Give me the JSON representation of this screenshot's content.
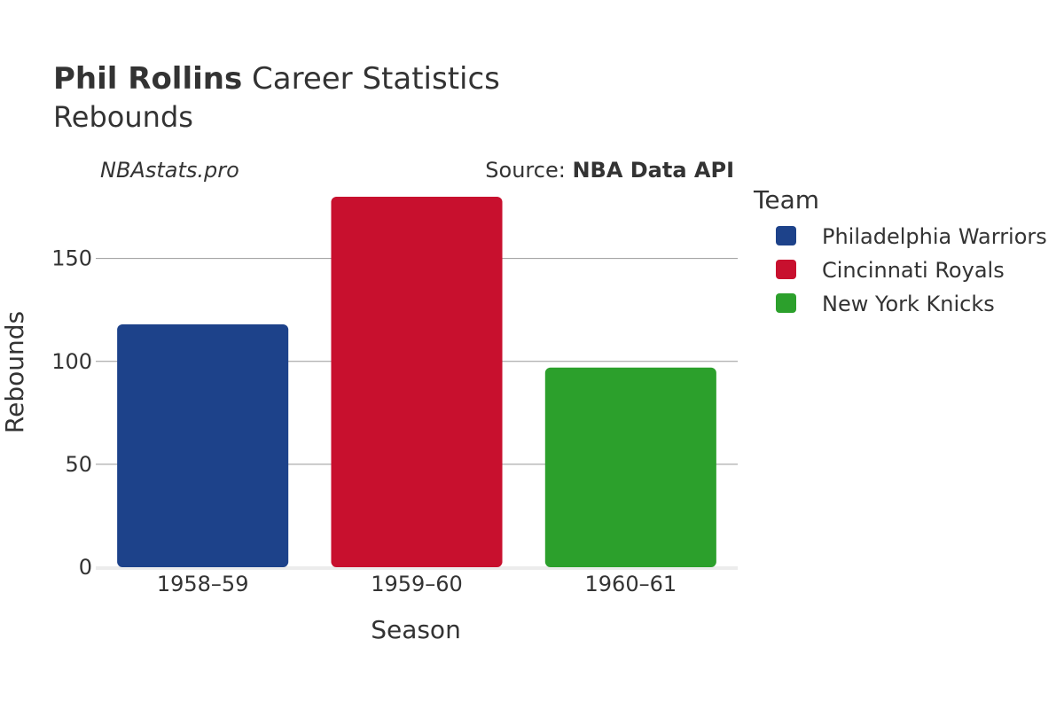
{
  "header": {
    "player_name": "Phil Rollins",
    "title_rest": " Career Statistics",
    "subtitle": "Rebounds"
  },
  "branding": {
    "site": "NBAstats.pro",
    "source_prefix": "Source: ",
    "source_name": "NBA Data API"
  },
  "legend": {
    "title": "Team",
    "items": [
      {
        "label": "Philadelphia Warriors",
        "color": "#1d428a"
      },
      {
        "label": "Cincinnati Royals",
        "color": "#c8102e"
      },
      {
        "label": "New York Knicks",
        "color": "#2ca02c"
      }
    ]
  },
  "chart_data": {
    "type": "bar",
    "title": "Phil Rollins Career Statistics",
    "subtitle": "Rebounds",
    "xlabel": "Season",
    "ylabel": "Rebounds",
    "categories": [
      "1958–59",
      "1959–60",
      "1960–61"
    ],
    "values": [
      118,
      180,
      97
    ],
    "teams": [
      "Philadelphia Warriors",
      "Cincinnati Royals",
      "New York Knicks"
    ],
    "colors": [
      "#1d428a",
      "#c8102e",
      "#2ca02c"
    ],
    "ylim": [
      0,
      180
    ],
    "yticks": [
      0,
      50,
      100,
      150
    ],
    "grid": true,
    "legend_position": "right"
  }
}
